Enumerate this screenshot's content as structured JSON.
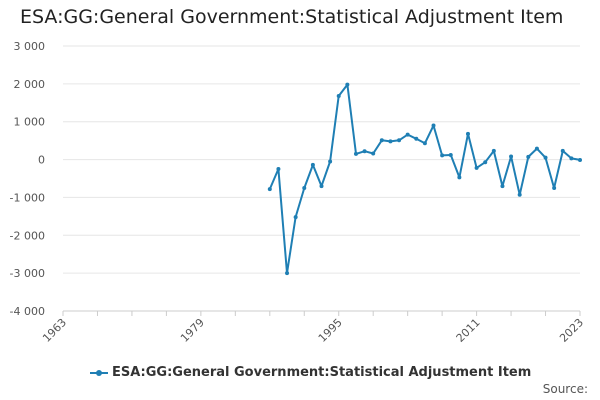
{
  "chart_data": {
    "type": "line",
    "title": "ESA:GG:General Government:Statistical Adjustment Item",
    "source_label": "Source:",
    "ylim": [
      -4000,
      3000
    ],
    "yticks": [
      3000,
      2000,
      1000,
      0,
      -1000,
      -2000,
      -3000,
      -4000
    ],
    "ytick_labels": [
      "3 000",
      "2 000",
      "1 000",
      "0",
      "-1 000",
      "-2 000",
      "-3 000",
      "-4 000"
    ],
    "xlim": [
      1963,
      2023
    ],
    "xticks": [
      1963,
      1979,
      1995,
      2011,
      2023
    ],
    "xtick_labels": [
      "1963",
      "1979",
      "1995",
      "2011",
      "2023"
    ],
    "grid": true,
    "legend_position": "bottom",
    "color": "#1f7fb4",
    "series": [
      {
        "name": "ESA:GG:General Government:Statistical Adjustment Item",
        "x": [
          1987,
          1988,
          1989,
          1990,
          1991,
          1992,
          1993,
          1994,
          1995,
          1996,
          1997,
          1998,
          1999,
          2000,
          2001,
          2002,
          2003,
          2004,
          2005,
          2006,
          2007,
          2008,
          2009,
          2010,
          2011,
          2012,
          2013,
          2014,
          2015,
          2016,
          2017,
          2018,
          2019,
          2020,
          2021,
          2022,
          2023
        ],
        "values": [
          -780,
          -250,
          -3000,
          -1520,
          -750,
          -140,
          -700,
          -50,
          1680,
          1980,
          150,
          220,
          160,
          510,
          480,
          510,
          660,
          550,
          430,
          900,
          110,
          120,
          -470,
          680,
          -220,
          -70,
          230,
          -700,
          80,
          -930,
          70,
          290,
          50,
          -750,
          230,
          30,
          -10
        ]
      }
    ]
  }
}
